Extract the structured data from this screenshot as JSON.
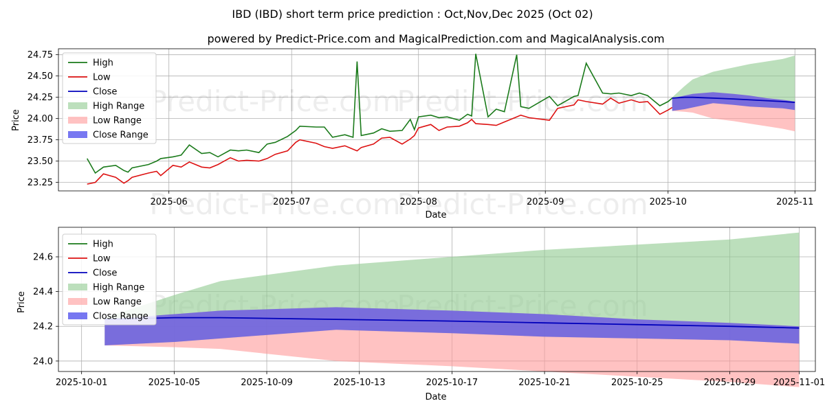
{
  "title": "IBD (IBD) short term price prediction : Oct,Nov,Dec 2025 (Oct 02)",
  "subtitle": "powered by Predict-Price.com and MagicalPrediction.com and MagicalAnalysis.com",
  "watermark": "Predict-Price.com",
  "colors": {
    "high": "#1a7a1a",
    "low": "#dd1111",
    "close": "#0000bb",
    "high_range": "#8fc98f",
    "low_range": "#ff9a9a",
    "close_range": "#5555ee",
    "grid": "#b0b0b0"
  },
  "legend": [
    "High",
    "Low",
    "Close",
    "High Range",
    "Low Range",
    "Close Range"
  ],
  "chart_data": [
    {
      "type": "line",
      "name": "history",
      "xlabel": "Date",
      "ylabel": "Price",
      "xlim": [
        "2025-05-05",
        "2025-11-06"
      ],
      "ylim": [
        23.15,
        24.82
      ],
      "xticks": [
        "2025-06",
        "2025-07",
        "2025-08",
        "2025-09",
        "2025-10",
        "2025-11"
      ],
      "yticks": [
        "23.25",
        "23.50",
        "23.75",
        "24.00",
        "24.25",
        "24.50",
        "24.75"
      ],
      "x": [
        "2025-05-12",
        "2025-05-14",
        "2025-05-16",
        "2025-05-19",
        "2025-05-21",
        "2025-05-22",
        "2025-05-23",
        "2025-05-27",
        "2025-05-29",
        "2025-05-30",
        "2025-06-02",
        "2025-06-04",
        "2025-06-06",
        "2025-06-09",
        "2025-06-11",
        "2025-06-13",
        "2025-06-16",
        "2025-06-18",
        "2025-06-20",
        "2025-06-23",
        "2025-06-25",
        "2025-06-27",
        "2025-06-30",
        "2025-07-02",
        "2025-07-03",
        "2025-07-07",
        "2025-07-09",
        "2025-07-11",
        "2025-07-14",
        "2025-07-16",
        "2025-07-17",
        "2025-07-18",
        "2025-07-21",
        "2025-07-23",
        "2025-07-25",
        "2025-07-28",
        "2025-07-30",
        "2025-07-31",
        "2025-08-01",
        "2025-08-04",
        "2025-08-06",
        "2025-08-08",
        "2025-08-11",
        "2025-08-13",
        "2025-08-14",
        "2025-08-15",
        "2025-08-18",
        "2025-08-20",
        "2025-08-22",
        "2025-08-25",
        "2025-08-26",
        "2025-08-28",
        "2025-09-02",
        "2025-09-04",
        "2025-09-08",
        "2025-09-09",
        "2025-09-11",
        "2025-09-15",
        "2025-09-17",
        "2025-09-19",
        "2025-09-22",
        "2025-09-24",
        "2025-09-26",
        "2025-09-29",
        "2025-10-01",
        "2025-10-02"
      ],
      "series": [
        {
          "name": "High",
          "values": [
            23.53,
            23.36,
            23.43,
            23.45,
            23.39,
            23.37,
            23.42,
            23.46,
            23.5,
            23.53,
            23.55,
            23.57,
            23.69,
            23.59,
            23.6,
            23.55,
            23.63,
            23.62,
            23.63,
            23.6,
            23.7,
            23.72,
            23.79,
            23.86,
            23.91,
            23.9,
            23.9,
            23.78,
            23.81,
            23.78,
            24.67,
            23.8,
            23.83,
            23.88,
            23.85,
            23.86,
            23.99,
            23.87,
            24.02,
            24.04,
            24.01,
            24.02,
            23.98,
            24.05,
            24.03,
            24.76,
            24.02,
            24.11,
            24.08,
            24.75,
            24.14,
            24.12,
            24.26,
            24.15,
            24.26,
            24.27,
            24.65,
            24.3,
            24.29,
            24.3,
            24.27,
            24.3,
            24.27,
            24.15,
            24.2,
            24.24
          ]
        },
        {
          "name": "Low",
          "values": [
            23.23,
            23.25,
            23.35,
            23.31,
            23.24,
            23.27,
            23.31,
            23.36,
            23.38,
            23.33,
            23.45,
            23.43,
            23.49,
            23.43,
            23.42,
            23.46,
            23.54,
            23.5,
            23.51,
            23.5,
            23.53,
            23.58,
            23.62,
            23.72,
            23.75,
            23.71,
            23.67,
            23.65,
            23.68,
            23.64,
            23.62,
            23.66,
            23.7,
            23.77,
            23.78,
            23.7,
            23.76,
            23.8,
            23.89,
            23.93,
            23.86,
            23.9,
            23.91,
            23.95,
            23.99,
            23.94,
            23.93,
            23.92,
            23.96,
            24.02,
            24.04,
            24.01,
            23.98,
            24.12,
            24.16,
            24.22,
            24.2,
            24.17,
            24.24,
            24.18,
            24.22,
            24.19,
            24.2,
            24.05,
            24.1,
            24.13
          ]
        }
      ],
      "forecast_x": [
        "2025-10-02",
        "2025-10-05",
        "2025-10-07",
        "2025-10-12",
        "2025-10-17",
        "2025-10-21",
        "2025-10-25",
        "2025-10-29",
        "2025-11-01"
      ],
      "forecast": {
        "close": [
          24.24,
          24.25,
          24.25,
          24.24,
          24.23,
          24.22,
          24.21,
          24.2,
          24.19
        ],
        "high_upper": [
          24.25,
          24.38,
          24.46,
          24.55,
          24.6,
          24.64,
          24.67,
          24.7,
          24.74
        ],
        "close_upper": [
          24.24,
          24.27,
          24.29,
          24.31,
          24.29,
          24.27,
          24.24,
          24.22,
          24.2
        ],
        "close_lower": [
          24.09,
          24.11,
          24.13,
          24.18,
          24.16,
          24.14,
          24.13,
          24.12,
          24.1
        ],
        "low_lower": [
          24.09,
          24.08,
          24.07,
          24.0,
          23.97,
          23.94,
          23.91,
          23.88,
          23.85
        ]
      }
    },
    {
      "type": "area",
      "name": "forecast",
      "xlabel": "Date",
      "ylabel": "Price",
      "xlim": [
        "2025-09-30",
        "2025-11-01.7"
      ],
      "ylim": [
        23.94,
        24.77
      ],
      "xticks": [
        "2025-10-01",
        "2025-10-05",
        "2025-10-09",
        "2025-10-13",
        "2025-10-17",
        "2025-10-21",
        "2025-10-25",
        "2025-10-29",
        "2025-11-01"
      ],
      "yticks": [
        "24.0",
        "24.2",
        "24.4",
        "24.6"
      ]
    }
  ]
}
